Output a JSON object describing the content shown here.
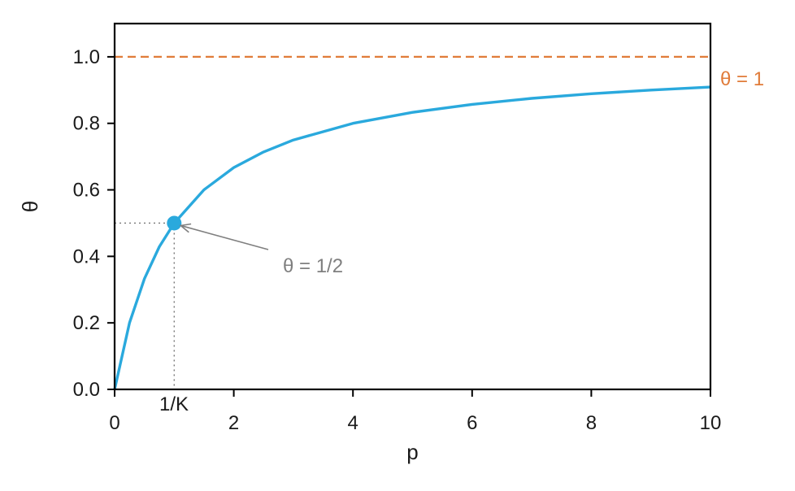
{
  "chart_data": {
    "type": "line",
    "xlabel": "p",
    "ylabel": "θ",
    "xlim": [
      0,
      10
    ],
    "ylim": [
      0,
      1.1
    ],
    "x_ticks": [
      0,
      2,
      4,
      6,
      8,
      10
    ],
    "x_tick_labels": [
      "0",
      "2",
      "4",
      "6",
      "8",
      "10"
    ],
    "y_ticks": [
      0.0,
      0.2,
      0.4,
      0.6,
      0.8,
      1.0
    ],
    "y_tick_labels": [
      "0.0",
      "0.2",
      "0.4",
      "0.6",
      "0.8",
      "1.0"
    ],
    "grid": false,
    "series": [
      {
        "style": "solid",
        "color": "#2aa9dd",
        "x": [
          0,
          0.25,
          0.5,
          0.75,
          1,
          1.5,
          2,
          2.5,
          3,
          4,
          5,
          6,
          7,
          8,
          9,
          10
        ],
        "y": [
          0,
          0.2,
          0.333,
          0.429,
          0.5,
          0.6,
          0.667,
          0.714,
          0.75,
          0.8,
          0.833,
          0.857,
          0.875,
          0.889,
          0.9,
          0.909
        ]
      }
    ],
    "reference_lines": [
      {
        "orientation": "horizontal",
        "y": 1.0,
        "style": "dashed",
        "color": "#e07b39",
        "label": "θ = 1"
      }
    ],
    "highlight_point": {
      "x": 1,
      "y": 0.5,
      "color": "#2aa9dd",
      "x_label": "1/K",
      "annotation": "θ = 1/2",
      "annotation_color": "#7f7f7f",
      "guide_lines": "dotted"
    }
  }
}
